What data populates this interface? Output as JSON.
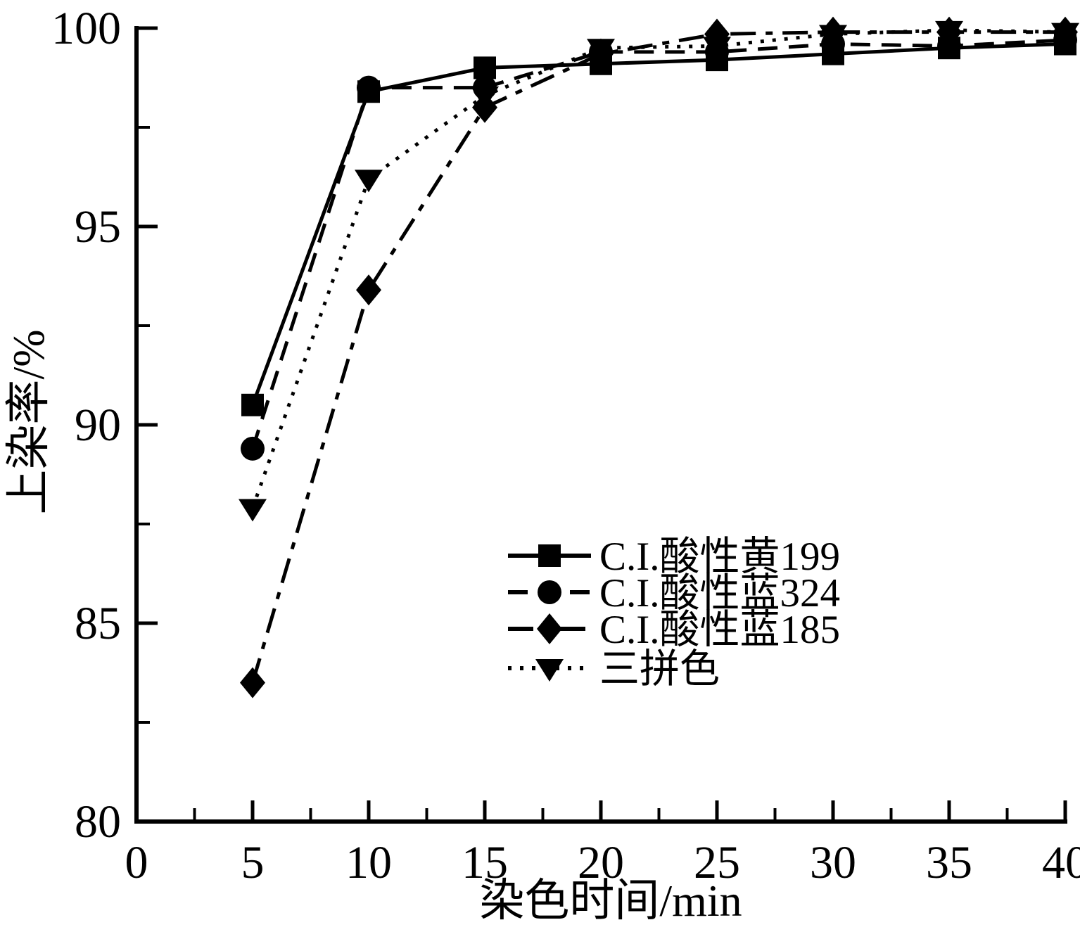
{
  "figure": {
    "background": "#ffffff",
    "ink_color": "#000000"
  },
  "chart_data": {
    "type": "line",
    "title": "",
    "xlabel": "染色时间/min",
    "ylabel": "上染率/%",
    "xlim": [
      0,
      40
    ],
    "ylim": [
      80,
      100
    ],
    "x_major_ticks": [
      0,
      5,
      10,
      15,
      20,
      25,
      30,
      35,
      40
    ],
    "x_minor_ticks": [
      2.5,
      7.5,
      12.5,
      17.5,
      22.5,
      27.5,
      32.5,
      37.5
    ],
    "y_major_ticks": [
      80,
      85,
      90,
      95,
      100
    ],
    "y_minor_ticks": [
      82.5,
      87.5,
      92.5,
      97.5
    ],
    "grid": false,
    "legend_position": "inside-lower-right",
    "x": [
      5,
      10,
      15,
      20,
      25,
      30,
      35,
      40
    ],
    "series": [
      {
        "name": "C.I.酸性黄199",
        "marker": "square",
        "line": "solid",
        "values": [
          90.5,
          98.4,
          99.0,
          99.1,
          99.2,
          99.35,
          99.5,
          99.6
        ]
      },
      {
        "name": "C.I.酸性蓝324",
        "marker": "circle",
        "line": "dashed",
        "values": [
          89.4,
          98.5,
          98.5,
          99.4,
          99.4,
          99.6,
          99.55,
          99.7
        ]
      },
      {
        "name": "C.I.酸性蓝185",
        "marker": "diamond",
        "line": "dashdot",
        "values": [
          83.5,
          93.4,
          98.0,
          99.35,
          99.85,
          99.9,
          99.9,
          99.9
        ]
      },
      {
        "name": "三拼色",
        "marker": "triangle-down",
        "line": "dotted",
        "values": [
          87.9,
          96.2,
          98.3,
          99.5,
          99.55,
          99.85,
          99.95,
          99.9
        ]
      }
    ]
  }
}
